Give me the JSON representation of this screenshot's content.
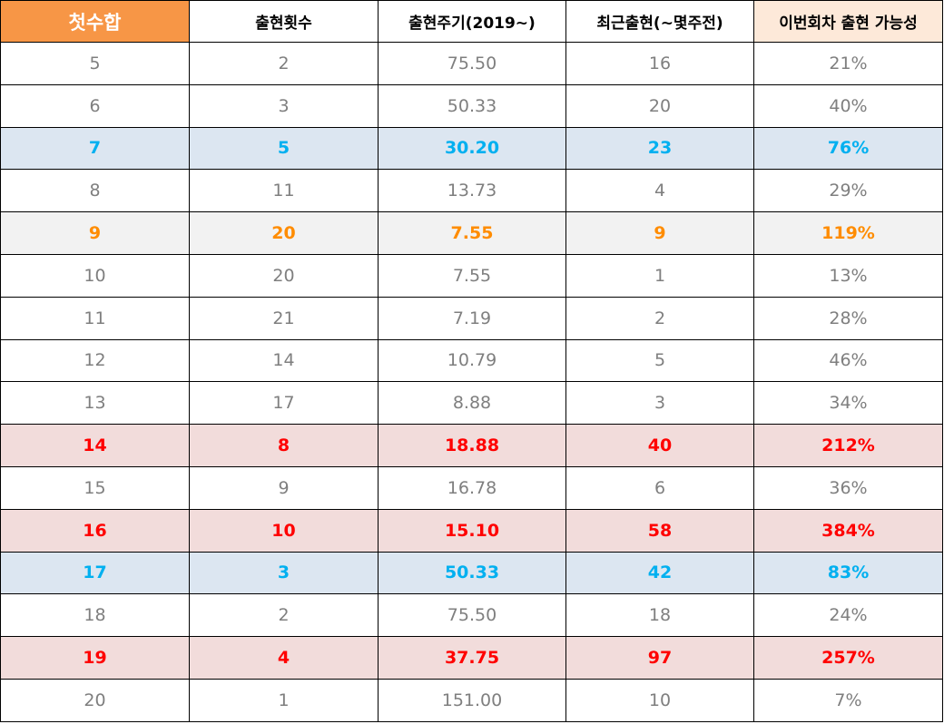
{
  "chart_data": {
    "type": "table",
    "columns": [
      "첫수합",
      "출현횟수",
      "출현주기(2019~)",
      "최근출현(~몇주전)",
      "이번회차 출현 가능성"
    ],
    "rows": [
      {
        "cells": [
          "5",
          "2",
          "75.50",
          "16",
          "21%"
        ],
        "highlight": "none"
      },
      {
        "cells": [
          "6",
          "3",
          "50.33",
          "20",
          "40%"
        ],
        "highlight": "none"
      },
      {
        "cells": [
          "7",
          "5",
          "30.20",
          "23",
          "76%"
        ],
        "highlight": "blue"
      },
      {
        "cells": [
          "8",
          "11",
          "13.73",
          "4",
          "29%"
        ],
        "highlight": "none"
      },
      {
        "cells": [
          "9",
          "20",
          "7.55",
          "9",
          "119%"
        ],
        "highlight": "orange"
      },
      {
        "cells": [
          "10",
          "20",
          "7.55",
          "1",
          "13%"
        ],
        "highlight": "none"
      },
      {
        "cells": [
          "11",
          "21",
          "7.19",
          "2",
          "28%"
        ],
        "highlight": "none"
      },
      {
        "cells": [
          "12",
          "14",
          "10.79",
          "5",
          "46%"
        ],
        "highlight": "none"
      },
      {
        "cells": [
          "13",
          "17",
          "8.88",
          "3",
          "34%"
        ],
        "highlight": "none"
      },
      {
        "cells": [
          "14",
          "8",
          "18.88",
          "40",
          "212%"
        ],
        "highlight": "red"
      },
      {
        "cells": [
          "15",
          "9",
          "16.78",
          "6",
          "36%"
        ],
        "highlight": "none"
      },
      {
        "cells": [
          "16",
          "10",
          "15.10",
          "58",
          "384%"
        ],
        "highlight": "red"
      },
      {
        "cells": [
          "17",
          "3",
          "50.33",
          "42",
          "83%"
        ],
        "highlight": "blue"
      },
      {
        "cells": [
          "18",
          "2",
          "75.50",
          "18",
          "24%"
        ],
        "highlight": "none"
      },
      {
        "cells": [
          "19",
          "4",
          "37.75",
          "97",
          "257%"
        ],
        "highlight": "red"
      },
      {
        "cells": [
          "20",
          "1",
          "151.00",
          "10",
          "7%"
        ],
        "highlight": "none"
      }
    ],
    "colors": {
      "header_first_bg": "#f79646",
      "header_last_bg": "#fde9d9",
      "normal_text": "#7f7f7f",
      "blue_text": "#00b0f0",
      "blue_bg": "#dce6f1",
      "orange_text": "#ff8c00",
      "orange_bg": "#f2f2f2",
      "red_text": "#ff0000",
      "red_bg": "#f2dcdb"
    }
  }
}
